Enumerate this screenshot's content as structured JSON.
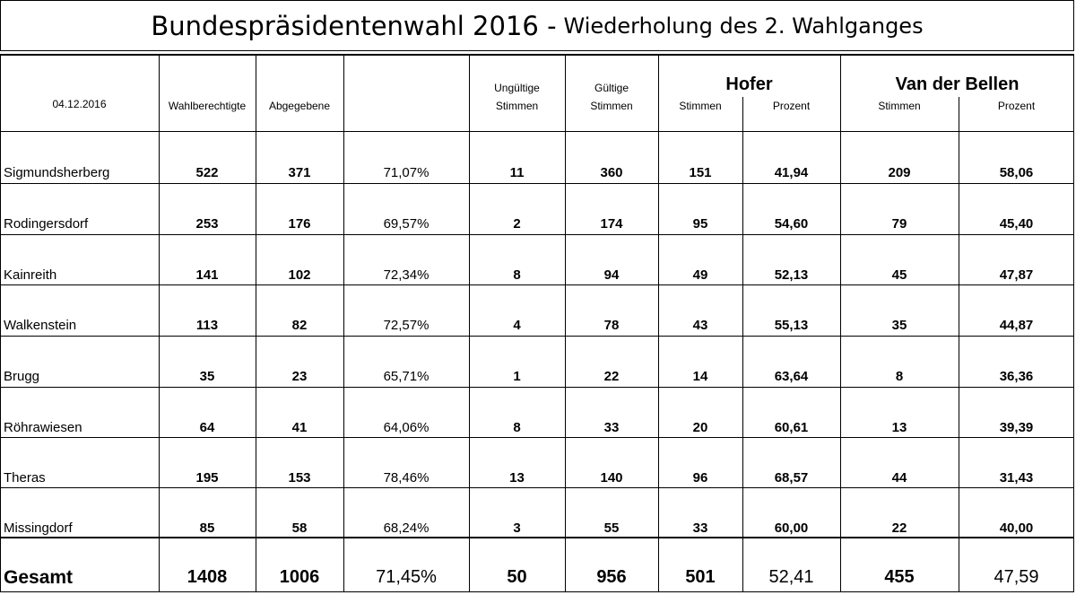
{
  "title": {
    "main": "Bundespräsidentenwahl 2016 -",
    "sub": "Wiederholung des 2. Wahlganges"
  },
  "header": {
    "date": "04.12.2016",
    "wahlberechtigte": "Wahlberechtigte",
    "abgegebene": "Abgegebene",
    "ungueltige_line1": "Ungültige",
    "ungueltige_line2": "Stimmen",
    "gueltige_line1": "Gültige",
    "gueltige_line2": "Stimmen",
    "hofer": "Hofer",
    "hofer_stimmen": "Stimmen",
    "hofer_prozent": "Prozent",
    "vdb": "Van der Bellen",
    "vdb_stimmen": "Stimmen",
    "vdb_prozent": "Prozent"
  },
  "rows": [
    {
      "name": "Sigmundsherberg",
      "wahlberechtigte": "522",
      "abgegebene": "371",
      "beteiligung": "71,07%",
      "ungueltig": "11",
      "gueltig": "360",
      "hofer_stimmen": "151",
      "hofer_prozent": "41,94",
      "vdb_stimmen": "209",
      "vdb_prozent": "58,06"
    },
    {
      "name": "Rodingersdorf",
      "wahlberechtigte": "253",
      "abgegebene": "176",
      "beteiligung": "69,57%",
      "ungueltig": "2",
      "gueltig": "174",
      "hofer_stimmen": "95",
      "hofer_prozent": "54,60",
      "vdb_stimmen": "79",
      "vdb_prozent": "45,40"
    },
    {
      "name": "Kainreith",
      "wahlberechtigte": "141",
      "abgegebene": "102",
      "beteiligung": "72,34%",
      "ungueltig": "8",
      "gueltig": "94",
      "hofer_stimmen": "49",
      "hofer_prozent": "52,13",
      "vdb_stimmen": "45",
      "vdb_prozent": "47,87"
    },
    {
      "name": "Walkenstein",
      "wahlberechtigte": "113",
      "abgegebene": "82",
      "beteiligung": "72,57%",
      "ungueltig": "4",
      "gueltig": "78",
      "hofer_stimmen": "43",
      "hofer_prozent": "55,13",
      "vdb_stimmen": "35",
      "vdb_prozent": "44,87"
    },
    {
      "name": "Brugg",
      "wahlberechtigte": "35",
      "abgegebene": "23",
      "beteiligung": "65,71%",
      "ungueltig": "1",
      "gueltig": "22",
      "hofer_stimmen": "14",
      "hofer_prozent": "63,64",
      "vdb_stimmen": "8",
      "vdb_prozent": "36,36"
    },
    {
      "name": "Röhrawiesen",
      "wahlberechtigte": "64",
      "abgegebene": "41",
      "beteiligung": "64,06%",
      "ungueltig": "8",
      "gueltig": "33",
      "hofer_stimmen": "20",
      "hofer_prozent": "60,61",
      "vdb_stimmen": "13",
      "vdb_prozent": "39,39"
    },
    {
      "name": "Theras",
      "wahlberechtigte": "195",
      "abgegebene": "153",
      "beteiligung": "78,46%",
      "ungueltig": "13",
      "gueltig": "140",
      "hofer_stimmen": "96",
      "hofer_prozent": "68,57",
      "vdb_stimmen": "44",
      "vdb_prozent": "31,43"
    },
    {
      "name": "Missingdorf",
      "wahlberechtigte": "85",
      "abgegebene": "58",
      "beteiligung": "68,24%",
      "ungueltig": "3",
      "gueltig": "55",
      "hofer_stimmen": "33",
      "hofer_prozent": "60,00",
      "vdb_stimmen": "22",
      "vdb_prozent": "40,00"
    }
  ],
  "total": {
    "name": "Gesamt",
    "wahlberechtigte": "1408",
    "abgegebene": "1006",
    "beteiligung": "71,45%",
    "ungueltig": "50",
    "gueltig": "956",
    "hofer_stimmen": "501",
    "hofer_prozent": "52,41",
    "vdb_stimmen": "455",
    "vdb_prozent": "47,59"
  }
}
